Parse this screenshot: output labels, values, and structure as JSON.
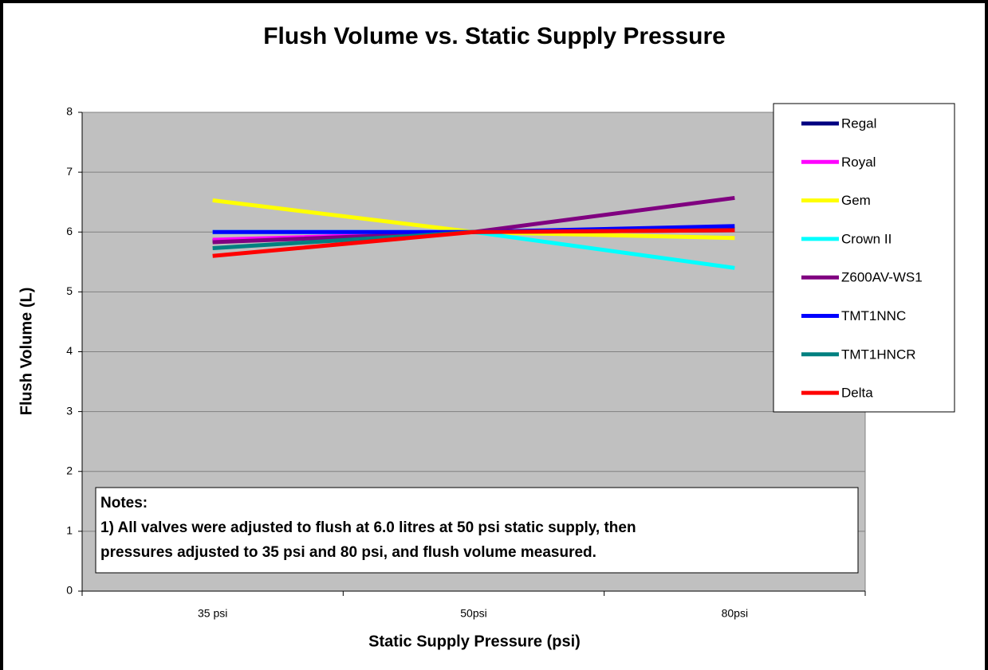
{
  "chart_data": {
    "type": "line",
    "title": "Flush Volume vs. Static Supply Pressure",
    "x_label": "Static Supply Pressure  (psi)",
    "y_label": "Flush Volume (L)",
    "categories": [
      "35 psi",
      "50psi",
      "80psi"
    ],
    "ylim": [
      0,
      8
    ],
    "yticks": [
      0,
      1,
      2,
      3,
      4,
      5,
      6,
      7,
      8
    ],
    "grid": true,
    "legend": "top-right",
    "series": [
      {
        "name": "Regal",
        "color": "#000080",
        "values": [
          5.85,
          6.0,
          6.05
        ]
      },
      {
        "name": "Royal",
        "color": "#ff00ff",
        "values": [
          5.87,
          6.0,
          6.03
        ]
      },
      {
        "name": "Gem",
        "color": "#ffff00",
        "values": [
          6.53,
          6.0,
          5.9
        ]
      },
      {
        "name": "Crown II",
        "color": "#00ffff",
        "values": [
          6.0,
          6.0,
          5.4
        ]
      },
      {
        "name": "Z600AV-WS1",
        "color": "#800080",
        "values": [
          5.83,
          6.0,
          6.57
        ]
      },
      {
        "name": "TMT1NNC",
        "color": "#0000ff",
        "values": [
          6.0,
          6.0,
          6.1
        ]
      },
      {
        "name": "TMT1HNCR",
        "color": "#008080",
        "values": [
          5.73,
          6.0,
          6.03
        ]
      },
      {
        "name": "Delta",
        "color": "#ff0000",
        "values": [
          5.6,
          6.0,
          6.03
        ]
      }
    ],
    "notes": [
      "Notes:",
      "1) All valves were adjusted to flush at 6.0 litres at 50 psi static supply, then",
      "pressures adjusted to 35 psi and 80 psi, and flush volume measured."
    ]
  }
}
